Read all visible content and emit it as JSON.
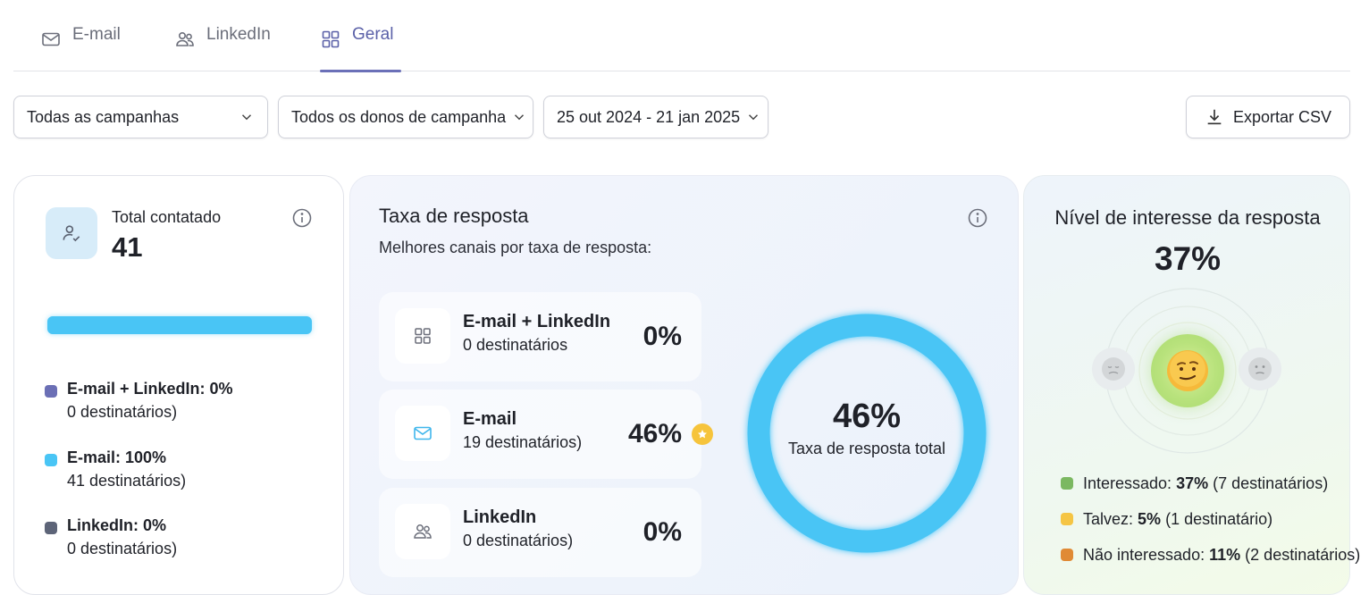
{
  "tabs": [
    {
      "label": "E-mail",
      "icon": "mail-icon",
      "active": false
    },
    {
      "label": "LinkedIn",
      "icon": "users-icon",
      "active": false
    },
    {
      "label": "Geral",
      "icon": "grid-icon",
      "active": true
    }
  ],
  "filters": {
    "campaigns": "Todas as campanhas",
    "owners": "Todos os donos de campanha",
    "dates": "25 out 2024 - 21 jan 2025",
    "export_label": "Exportar CSV"
  },
  "total": {
    "label": "Total contatado",
    "value": "41",
    "bar_fraction": 1.0,
    "legend": [
      {
        "title": "E-mail + LinkedIn: 0%",
        "sub": "0 destinatários)",
        "color": "#6b6fb5"
      },
      {
        "title": "E-mail: 100%",
        "sub": "41 destinatários)",
        "color": "#49c5f5"
      },
      {
        "title": "LinkedIn: 0%",
        "sub": "0 destinatários)",
        "color": "#5d6478"
      }
    ]
  },
  "rate": {
    "title": "Taxa de resposta",
    "subtitle": "Melhores canais por taxa de resposta:",
    "channels": [
      {
        "name": "E-mail + LinkedIn",
        "recipients": "0 destinatários",
        "value": "0%",
        "icon": "grid-icon"
      },
      {
        "name": "E-mail",
        "recipients": "19 destinatários)",
        "value": "46%",
        "icon": "mail-icon",
        "best": true
      },
      {
        "name": "LinkedIn",
        "recipients": "0 destinatários)",
        "value": "0%",
        "icon": "users-icon"
      }
    ],
    "donut_value": "46%",
    "donut_label": "Taxa de resposta total",
    "donut_color": "#49c5f5"
  },
  "interest": {
    "title": "Nível de interesse da resposta",
    "value": "37%",
    "legend": [
      {
        "label": "Interessado:",
        "pct": "37%",
        "detail": "(7 destinatários)",
        "color": "#7bb861"
      },
      {
        "label": "Talvez:",
        "pct": "5%",
        "detail": "(1 destinatário)",
        "color": "#f5c544"
      },
      {
        "label": "Não interessado:",
        "pct": "11%",
        "detail": "(2 destinatários)",
        "color": "#e08a35"
      }
    ]
  }
}
